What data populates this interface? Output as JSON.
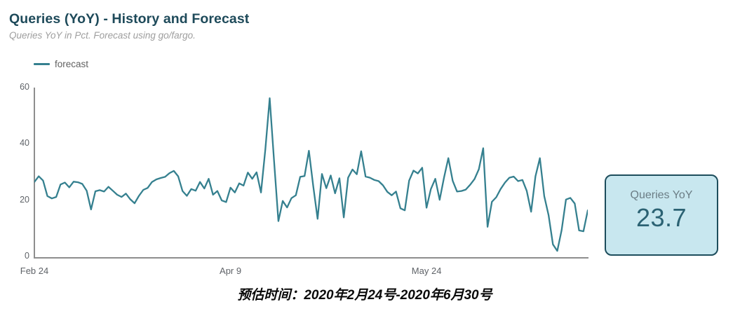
{
  "header": {
    "title": "Queries (YoY) - History and Forecast",
    "subtitle": "Queries YoY in Pct. Forecast using go/fargo."
  },
  "legend": {
    "items": [
      {
        "label": "forecast",
        "color": "#35808f"
      }
    ]
  },
  "chart_data": {
    "type": "line",
    "title": "Queries (YoY) - History and Forecast",
    "xlabel": "",
    "ylabel": "Queries YoY in Pct",
    "ylim": [
      0,
      60
    ],
    "y_ticks": [
      0,
      20,
      40,
      60
    ],
    "grid": false,
    "legend_position": "top-left",
    "x_ticks": [
      {
        "label": "Feb 24",
        "day_index": 0
      },
      {
        "label": "Apr 9",
        "day_index": 45
      },
      {
        "label": "May 24",
        "day_index": 90
      }
    ],
    "x_range_note": "daily points from Feb 24 2020 to Jun 30 2020",
    "series": [
      {
        "name": "forecast",
        "color": "#35808f",
        "values": [
          26.5,
          28.5,
          27.0,
          21.5,
          20.7,
          21.2,
          25.6,
          26.3,
          24.6,
          26.6,
          26.4,
          25.8,
          23.4,
          16.8,
          23.2,
          23.6,
          23.1,
          24.8,
          23.4,
          22.0,
          21.2,
          22.4,
          20.4,
          19.0,
          21.6,
          23.7,
          24.4,
          26.5,
          27.4,
          27.9,
          28.3,
          29.6,
          30.4,
          28.5,
          23.3,
          21.6,
          24.0,
          23.4,
          26.5,
          24.2,
          27.6,
          22.0,
          23.3,
          20.0,
          19.4,
          24.5,
          22.8,
          26.0,
          25.2,
          29.8,
          27.6,
          29.9,
          22.8,
          38.0,
          56.0,
          34.0,
          12.7,
          19.8,
          17.5,
          20.8,
          21.8,
          28.3,
          28.6,
          37.5,
          25.0,
          13.5,
          29.3,
          24.3,
          28.8,
          22.5,
          27.8,
          14.0,
          28.0,
          30.9,
          29.2,
          37.3,
          28.4,
          28.0,
          27.2,
          26.8,
          25.3,
          23.0,
          21.8,
          23.1,
          17.2,
          16.5,
          27.0,
          30.5,
          29.5,
          31.5,
          17.4,
          24.0,
          27.6,
          20.2,
          28.0,
          34.9,
          26.9,
          23.1,
          23.3,
          23.8,
          25.5,
          27.5,
          31.0,
          38.4,
          10.7,
          19.5,
          21.1,
          24.0,
          26.3,
          28.0,
          28.4,
          26.8,
          27.2,
          23.3,
          16.0,
          28.5,
          34.9,
          21.5,
          14.8,
          4.5,
          2.2,
          9.5,
          20.3,
          20.9,
          18.9,
          9.4,
          9.1,
          16.5
        ]
      }
    ]
  },
  "scorecard": {
    "label": "Queries YoY",
    "value": "23.7",
    "bg_color": "#c8e7ef",
    "border_color": "#1d4d5c",
    "value_color": "#2b6273"
  },
  "caption": {
    "text": "预估时间：2020年2月24号-2020年6月30号"
  }
}
